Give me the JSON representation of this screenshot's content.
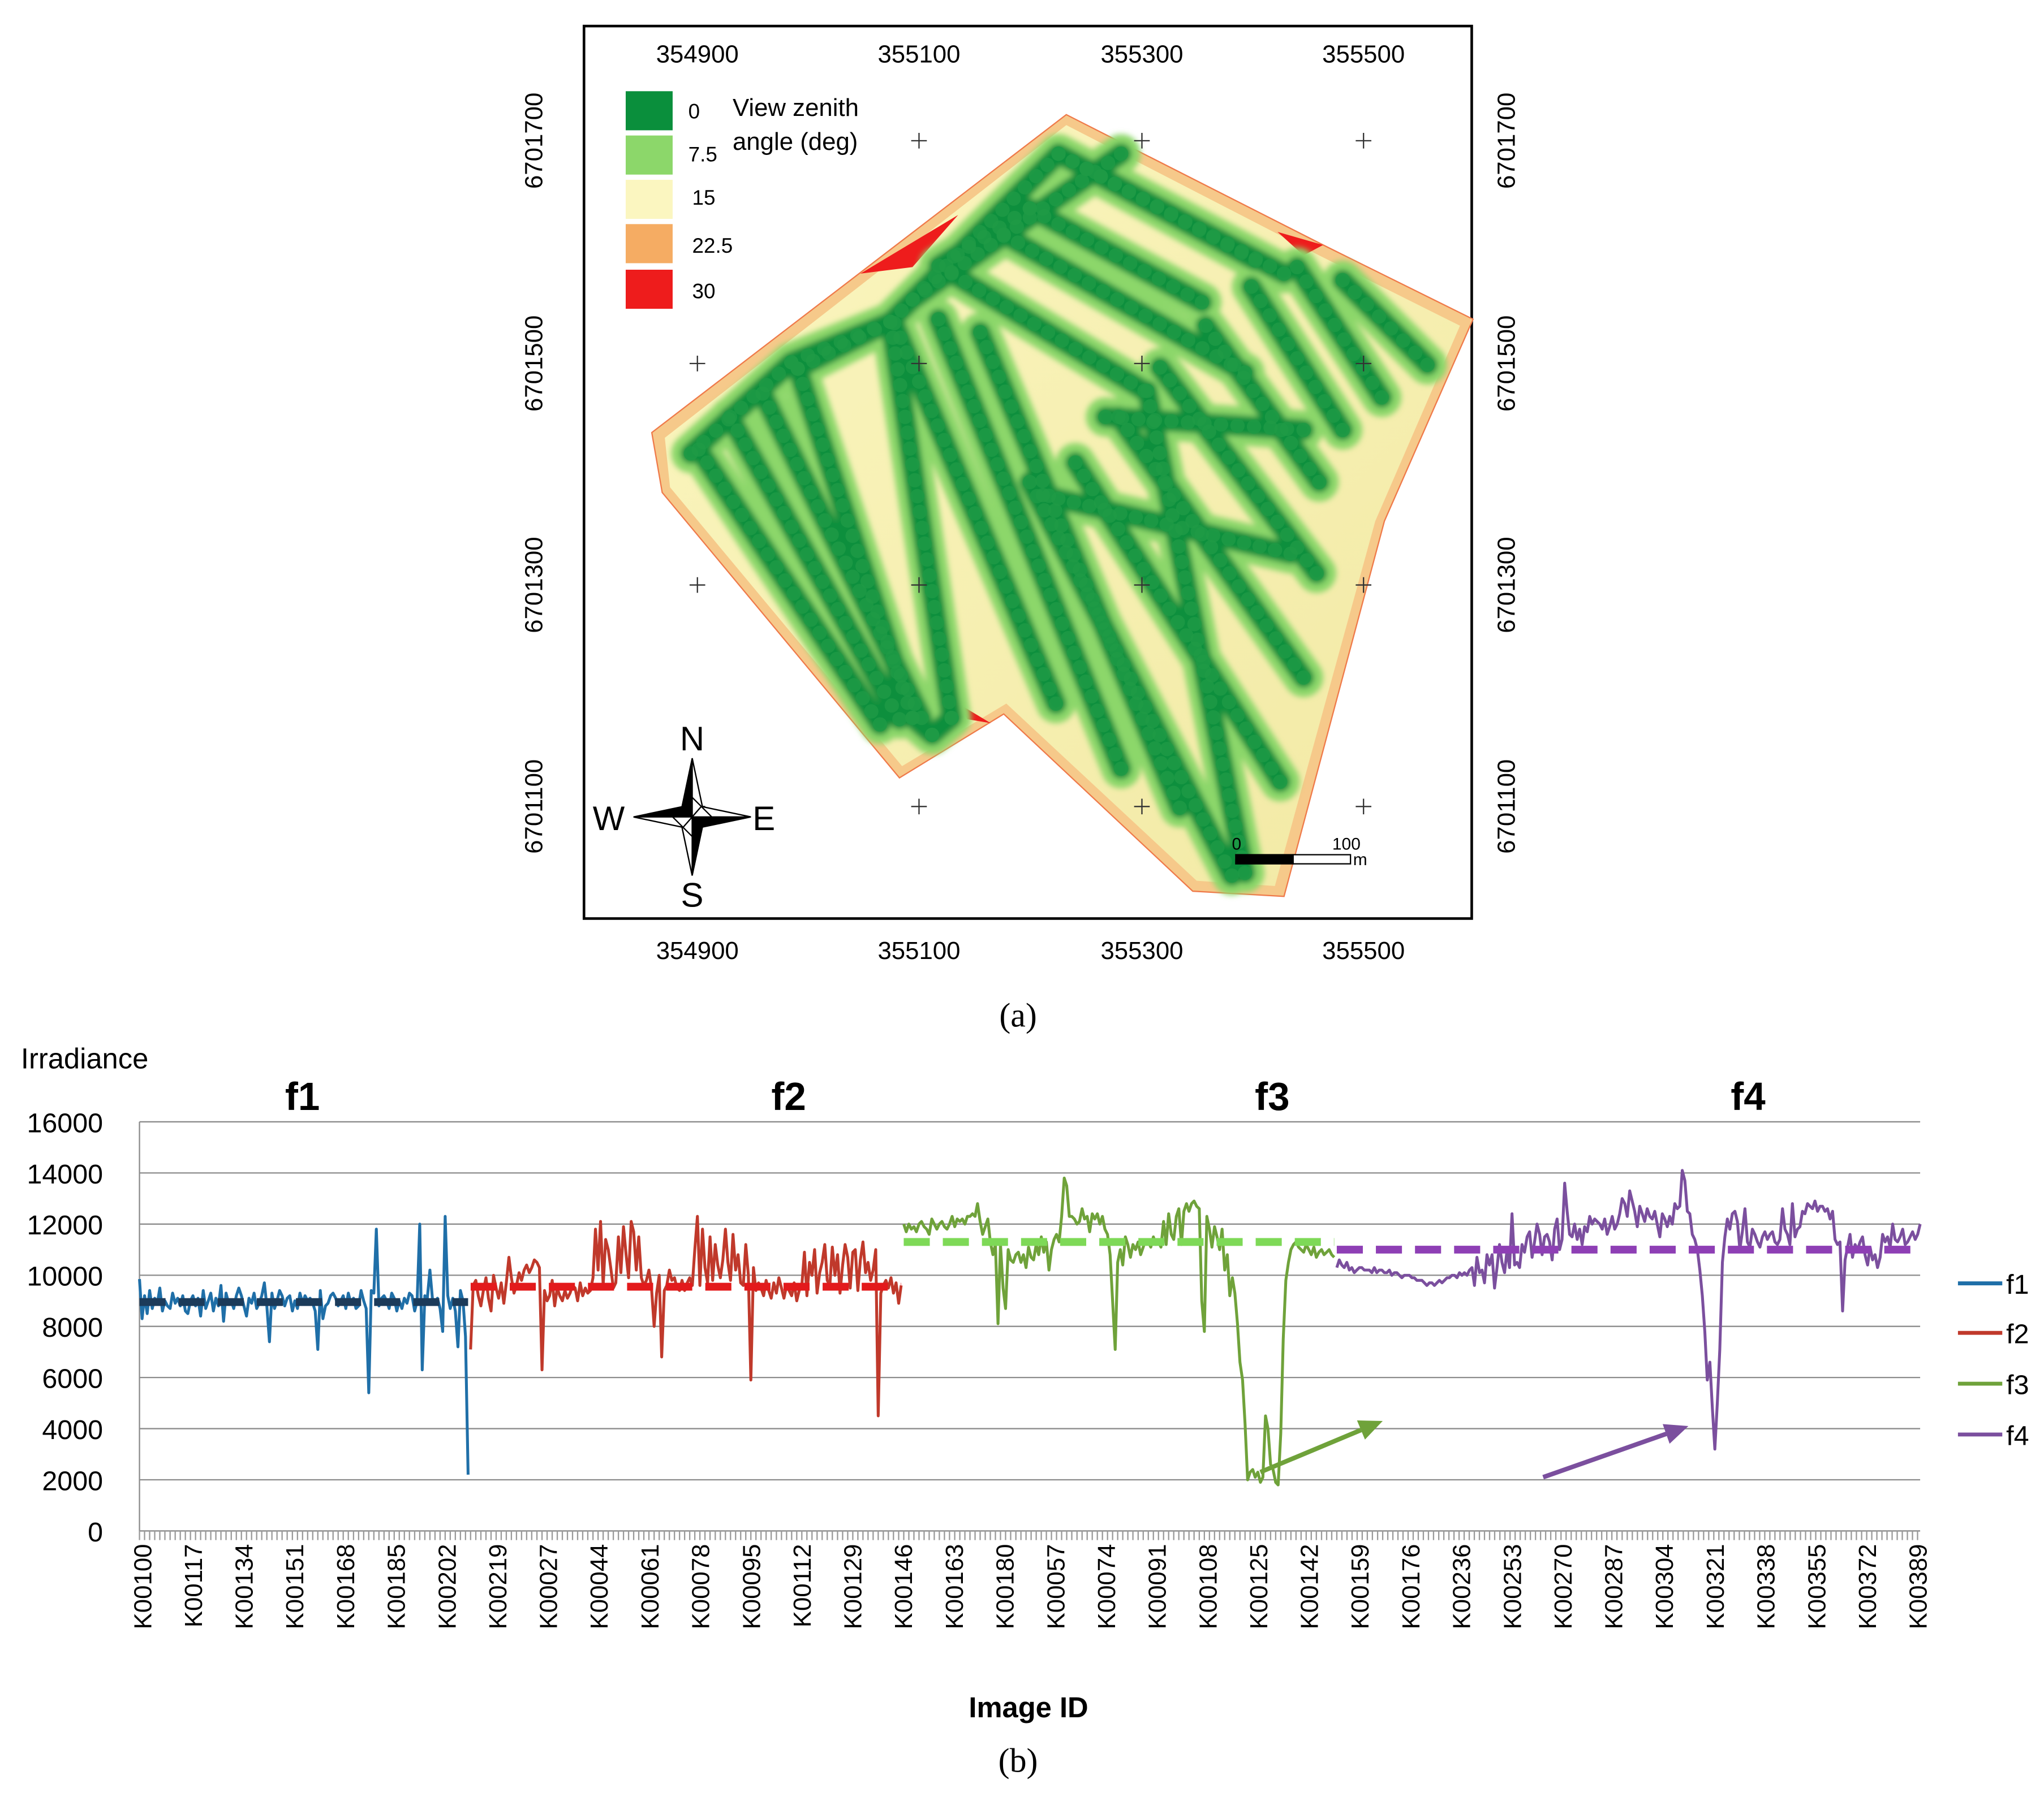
{
  "panel_a": {
    "caption": "(a)",
    "legend": {
      "title_line1": "View zenith",
      "title_line2": "angle (deg)",
      "entries": [
        {
          "label": "0",
          "color": "#0a8f3c"
        },
        {
          "label": "7.5",
          "color": "#8cd76a"
        },
        {
          "label": "15",
          "color": "#fbf6c0"
        },
        {
          "label": "22.5",
          "color": "#f5ac63"
        },
        {
          "label": "30",
          "color": "#ee1c1c"
        }
      ]
    },
    "x_ticks": [
      "354900",
      "355100",
      "355300",
      "355500"
    ],
    "y_ticks": [
      "6701700",
      "6701500",
      "6701300",
      "6701100"
    ],
    "compass": {
      "n": "N",
      "s": "S",
      "e": "E",
      "w": "W"
    },
    "scale_bar": {
      "start": "0",
      "end": "100",
      "unit": "m"
    }
  },
  "colors": {
    "f1": "#1f6fa8",
    "f2": "#c0392b",
    "f3": "#6fa23a",
    "f4": "#7b4f9e",
    "m1": "#1c3b5a",
    "m2": "#e31a1c",
    "m3": "#7ed957",
    "m4": "#8e3fb5"
  },
  "chart_data": {
    "type": "line",
    "caption": "(b)",
    "title_ylabel": "Irradiance",
    "xlabel": "Image ID",
    "ylim": [
      0,
      16000
    ],
    "y_ticks": [
      0,
      2000,
      4000,
      6000,
      8000,
      10000,
      12000,
      14000,
      16000
    ],
    "x_tick_labels": [
      "K00100",
      "K00117",
      "K00134",
      "K00151",
      "K00168",
      "K00185",
      "K00202",
      "K00219",
      "K00027",
      "K00044",
      "K00061",
      "K00078",
      "K00095",
      "K00112",
      "K00129",
      "K00146",
      "K00163",
      "K00180",
      "K00057",
      "K00074",
      "K00091",
      "K00108",
      "K00125",
      "K00142",
      "K00159",
      "K00176",
      "K00236",
      "K00253",
      "K00270",
      "K00287",
      "K00304",
      "K00321",
      "K00338",
      "K00355",
      "K00372",
      "K00389"
    ],
    "group_titles": [
      "f1",
      "f2",
      "f3",
      "f4"
    ],
    "legend": [
      "f1",
      "f2",
      "f3",
      "f4"
    ],
    "series": [
      {
        "name": "f1",
        "mean": 8950,
        "start_index": 0,
        "end_index": 129,
        "values": [
          9850,
          8300,
          9200,
          8500,
          9400,
          8700,
          9100,
          8900,
          9500,
          8600,
          9000,
          8800,
          8700,
          9300,
          8900,
          9100,
          8800,
          9200,
          8600,
          8500,
          9000,
          9200,
          8800,
          9100,
          8400,
          9400,
          8700,
          9000,
          9300,
          8600,
          9100,
          8800,
          9600,
          8200,
          9300,
          8900,
          9000,
          8700,
          9200,
          9500,
          9200,
          8800,
          8400,
          9100,
          8900,
          9300,
          8700,
          8900,
          9200,
          9700,
          8800,
          7400,
          9300,
          8700,
          9000,
          9400,
          9200,
          8800,
          9100,
          9200,
          8600,
          9000,
          8700,
          9300,
          8900,
          9200,
          9000,
          9100,
          8900,
          8600,
          7100,
          9400,
          8300,
          8800,
          8900,
          9200,
          9300,
          9100,
          8800,
          9000,
          9200,
          8700,
          9300,
          8900,
          9100,
          8700,
          8800,
          9400,
          9000,
          8700,
          5400,
          9400,
          9300,
          11800,
          8800,
          9100,
          9200,
          9000,
          8700,
          9300,
          9100,
          8600,
          9000,
          8700,
          9100,
          8900,
          9300,
          9200,
          8600,
          9000,
          12000,
          6300,
          9200,
          9100,
          10200,
          9100,
          8900,
          9100,
          8700,
          7800,
          12300,
          9200,
          8700,
          9100,
          8600,
          7200,
          9400,
          9000,
          7600,
          2200
        ]
      },
      {
        "name": "f2",
        "mean": 9550,
        "start_index": 130,
        "end_index": 299,
        "values": [
          7100,
          9600,
          9800,
          9200,
          8800,
          9400,
          9900,
          9100,
          8600,
          10000,
          9500,
          9100,
          9700,
          8900,
          9700,
          10700,
          9900,
          9300,
          9600,
          10100,
          9800,
          10200,
          10400,
          10100,
          10300,
          10600,
          10500,
          10300,
          6300,
          9400,
          9000,
          9200,
          9800,
          8800,
          9500,
          9200,
          9000,
          9400,
          9100,
          9300,
          9600,
          9500,
          9000,
          9700,
          9200,
          9500,
          9300,
          9400,
          9900,
          11800,
          10200,
          12100,
          9600,
          11400,
          11000,
          10300,
          9500,
          9700,
          11500,
          10100,
          11900,
          10800,
          9900,
          12100,
          11700,
          10200,
          11500,
          9900,
          9600,
          9800,
          10200,
          9500,
          8000,
          9300,
          10000,
          6800,
          9400,
          9600,
          10200,
          9800,
          9900,
          9500,
          9400,
          9800,
          9400,
          9700,
          9900,
          9600,
          11000,
          12300,
          9600,
          11800,
          10300,
          9700,
          11500,
          9800,
          11200,
          10400,
          9900,
          10600,
          11800,
          10500,
          9800,
          11600,
          10200,
          10800,
          9700,
          9600,
          11200,
          10000,
          5900,
          10300,
          9400,
          9700,
          9500,
          9200,
          9800,
          9400,
          9100,
          9700,
          9300,
          9900,
          9500,
          9100,
          9600,
          9400,
          9200,
          9700,
          9000,
          9400,
          9600,
          10900,
          9200,
          10500,
          10000,
          11000,
          9300,
          10100,
          10500,
          11200,
          9800,
          9600,
          11100,
          10000,
          10800,
          9300,
          10400,
          11200,
          10700,
          9500,
          10900,
          11000,
          9400,
          10600,
          11300,
          10100,
          10500,
          9800,
          10200,
          11000,
          4500,
          9300,
          9600,
          9800,
          9500,
          9900,
          9300,
          9700,
          8900,
          9600
        ]
      },
      {
        "name": "f3",
        "mean": 11300,
        "start_index": 300,
        "end_index": 469,
        "values": [
          12000,
          11700,
          12000,
          11800,
          11900,
          11700,
          12000,
          12100,
          11900,
          11800,
          11600,
          12200,
          12000,
          11800,
          12000,
          12100,
          11900,
          11800,
          12000,
          12300,
          11900,
          12200,
          12100,
          12200,
          12000,
          12300,
          12300,
          12400,
          12300,
          12800,
          12100,
          11600,
          11900,
          12200,
          11300,
          10800,
          11200,
          8100,
          11200,
          9500,
          8700,
          11000,
          10600,
          10500,
          10800,
          10900,
          10500,
          10800,
          10300,
          11100,
          10700,
          10600,
          11200,
          10800,
          11500,
          10900,
          11300,
          10200,
          11000,
          11400,
          11600,
          11300,
          12300,
          13800,
          13500,
          12300,
          12300,
          12200,
          12000,
          12100,
          12600,
          12200,
          12300,
          11700,
          12400,
          12200,
          12400,
          12000,
          12300,
          11800,
          11600,
          10800,
          9000,
          7100,
          10500,
          11000,
          10400,
          11500,
          11200,
          10700,
          11200,
          11000,
          11300,
          10800,
          11100,
          11400,
          11300,
          11100,
          11500,
          11200,
          11300,
          11100,
          12100,
          11200,
          12400,
          11600,
          11400,
          12300,
          12600,
          11200,
          12500,
          12800,
          12500,
          12800,
          12900,
          12700,
          12600,
          9000,
          7800,
          12300,
          11800,
          11100,
          11900,
          11500,
          11000,
          11800,
          10200,
          10800,
          9200,
          9900,
          9300,
          8100,
          6600,
          5900,
          4200,
          2000,
          2300,
          2400,
          2100,
          2300,
          1900,
          2100,
          4500,
          4000,
          2600,
          2400,
          1900,
          1800,
          3800,
          7500,
          9800,
          10500,
          11000,
          11200,
          11300,
          11100,
          11000,
          10900,
          11200,
          11000,
          10800,
          11100,
          10700,
          10900,
          11000,
          10800,
          10900,
          11000,
          10800,
          10700
        ]
      },
      {
        "name": "f4",
        "mean": 11000,
        "start_index": 470,
        "end_index": 699,
        "values": [
          10300,
          10600,
          10400,
          10300,
          10500,
          10200,
          10300,
          10100,
          10200,
          10300,
          10300,
          10200,
          10200,
          10200,
          10100,
          10300,
          10100,
          10200,
          10200,
          10100,
          10100,
          10200,
          10000,
          10100,
          10100,
          10000,
          9900,
          10000,
          10000,
          10000,
          9900,
          9900,
          9800,
          9800,
          9800,
          9700,
          9600,
          9700,
          9700,
          9600,
          9700,
          9800,
          9700,
          9800,
          9900,
          9900,
          10000,
          10000,
          9900,
          10100,
          10000,
          10100,
          10000,
          10200,
          10300,
          9600,
          10700,
          10100,
          10200,
          9700,
          10800,
          10400,
          10800,
          9500,
          10300,
          11200,
          10500,
          10100,
          11000,
          10300,
          12400,
          10400,
          10500,
          10300,
          11200,
          10900,
          11500,
          11700,
          10700,
          11300,
          12000,
          11600,
          10800,
          11500,
          11600,
          11300,
          10600,
          11800,
          12200,
          11000,
          11400,
          13600,
          12500,
          11600,
          11500,
          12000,
          11400,
          11800,
          11200,
          11900,
          11700,
          12300,
          12000,
          12200,
          12100,
          12000,
          11800,
          12200,
          11600,
          11900,
          12300,
          11800,
          12000,
          12400,
          13000,
          12800,
          12300,
          13300,
          12900,
          12500,
          11900,
          12700,
          12400,
          12100,
          12600,
          12300,
          12200,
          12500,
          12000,
          11500,
          12400,
          12200,
          11900,
          12300,
          12000,
          12800,
          12600,
          12700,
          14100,
          13700,
          12500,
          12400,
          11600,
          11400,
          11000,
          10200,
          9200,
          7800,
          5900,
          6600,
          4800,
          3200,
          5000,
          7100,
          10500,
          11500,
          12200,
          11800,
          12400,
          12500,
          12100,
          11000,
          11700,
          12600,
          11300,
          11100,
          11800,
          11600,
          11300,
          11100,
          11500,
          11700,
          11400,
          11600,
          11700,
          11300,
          11200,
          11400,
          12600,
          11800,
          11600,
          11200,
          12800,
          11500,
          11800,
          11900,
          12500,
          12400,
          12800,
          12700,
          12600,
          12900,
          12500,
          12700,
          12700,
          12500,
          12600,
          12200,
          12500,
          11400,
          11200,
          11300,
          8600,
          10600,
          11100,
          11600,
          10700,
          11200,
          11000,
          11300,
          11500,
          10800,
          10400,
          11100,
          10600,
          10800,
          10300,
          10700,
          11600,
          11300,
          11500,
          11100,
          12000,
          11400,
          11300,
          11500,
          11800,
          11200,
          11300,
          11500,
          11700,
          11400,
          11600,
          12000
        ]
      }
    ],
    "annotations": [
      {
        "series": "f3",
        "type": "arrow",
        "from": [
          440,
          2300
        ],
        "to": [
          488,
          4300
        ]
      },
      {
        "series": "f4",
        "type": "arrow",
        "from": [
          551,
          2100
        ],
        "to": [
          608,
          4100
        ]
      }
    ]
  }
}
